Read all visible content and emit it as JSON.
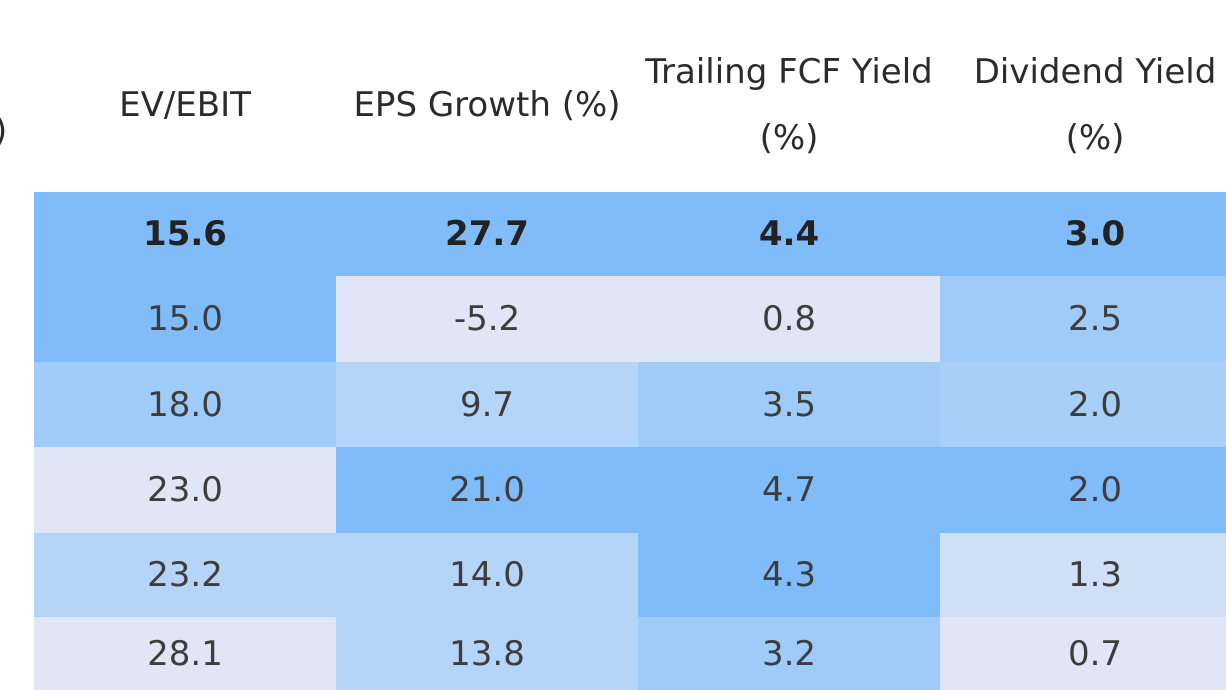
{
  "table": {
    "clipped_header_fragment": ")",
    "headers": [
      "EV/EBIT",
      "EPS Growth (%)",
      "Trailing FCF Yield (%)",
      "Dividend Yield (%)"
    ],
    "summary_row": [
      "15.6",
      "27.7",
      "4.4",
      "3.0"
    ],
    "rows": [
      [
        "15.0",
        "-5.2",
        "0.8",
        "2.5"
      ],
      [
        "18.0",
        "9.7",
        "3.5",
        "2.0"
      ],
      [
        "23.0",
        "21.0",
        "4.7",
        "2.0"
      ],
      [
        "23.2",
        "14.0",
        "4.3",
        "1.3"
      ],
      [
        "28.1",
        "13.8",
        "3.2",
        "0.7"
      ]
    ],
    "summary_fill": "#80bcfa",
    "cell_fills": [
      [
        "#80bcfa",
        "#e1e6f6",
        "#e1e6f6",
        "#9fcbf8"
      ],
      [
        "#9fcbf8",
        "#b4d5f8",
        "#9fcbf8",
        "#a8cff8"
      ],
      [
        "#e1e6f6",
        "#80bcfa",
        "#80bcfa",
        "#80bcfa"
      ],
      [
        "#b4d5f8",
        "#b4d5f8",
        "#80bcfa",
        "#cfdff6"
      ],
      [
        "#e1e6f6",
        "#b4d5f8",
        "#9fcbf8",
        "#e1e6f6"
      ]
    ]
  },
  "chart_data": {
    "type": "table",
    "columns": [
      "EV/EBIT",
      "EPS Growth (%)",
      "Trailing FCF Yield (%)",
      "Dividend Yield (%)"
    ],
    "rows": [
      [
        15.6,
        27.7,
        4.4,
        3.0
      ],
      [
        15.0,
        -5.2,
        0.8,
        2.5
      ],
      [
        18.0,
        9.7,
        3.5,
        2.0
      ],
      [
        23.0,
        21.0,
        4.7,
        2.0
      ],
      [
        23.2,
        14.0,
        4.3,
        1.3
      ],
      [
        28.1,
        13.8,
        3.2,
        0.7
      ]
    ],
    "summary_row_index": 0,
    "heatmap_colors": [
      "#80bcfa",
      "#9fcbf8",
      "#b4d5f8",
      "#cfdff6",
      "#e1e6f6"
    ]
  }
}
